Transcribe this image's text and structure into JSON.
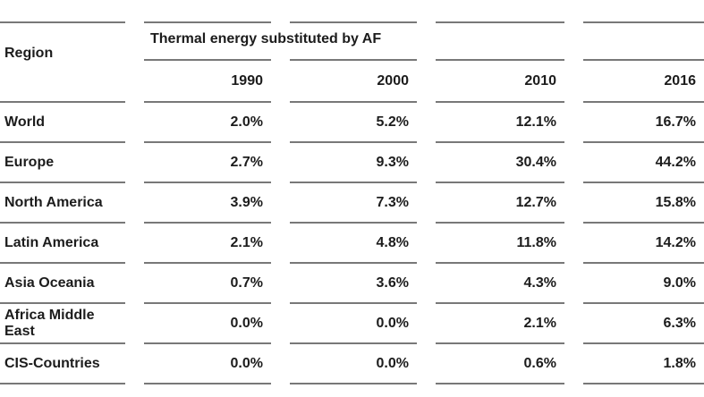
{
  "chart_data": {
    "type": "table",
    "title": "Thermal energy substituted by AF",
    "columns": [
      "Region",
      "1990",
      "2000",
      "2010",
      "2016"
    ],
    "rows": [
      {
        "region": "World",
        "values": [
          "2.0%",
          "5.2%",
          "12.1%",
          "16.7%"
        ],
        "highlighted": false
      },
      {
        "region": "Europe",
        "values": [
          "2.7%",
          "9.3%",
          "30.4%",
          "44.2%"
        ],
        "highlighted": true
      },
      {
        "region": "North America",
        "values": [
          "3.9%",
          "7.3%",
          "12.7%",
          "15.8%"
        ],
        "highlighted": false
      },
      {
        "region": "Latin America",
        "values": [
          "2.1%",
          "4.8%",
          "11.8%",
          "14.2%"
        ],
        "highlighted": false
      },
      {
        "region": "Asia Oceania",
        "values": [
          "0.7%",
          "3.6%",
          "4.3%",
          "9.0%"
        ],
        "highlighted": false
      },
      {
        "region": "Africa Middle East",
        "values": [
          "0.0%",
          "0.0%",
          "2.1%",
          "6.3%"
        ],
        "highlighted": false
      },
      {
        "region": "CIS-Countries",
        "values": [
          "0.0%",
          "0.0%",
          "0.6%",
          "1.8%"
        ],
        "highlighted": false
      }
    ],
    "layout": {
      "highlighted_row": "Europe",
      "value_alignment": "right",
      "grid": "horizontal rules only, segmented per column"
    }
  },
  "colors": {
    "highlight": "#FBFB7B",
    "rule_line": "#787878",
    "text": "#1C1C1C",
    "background": "#FFFFFF"
  }
}
